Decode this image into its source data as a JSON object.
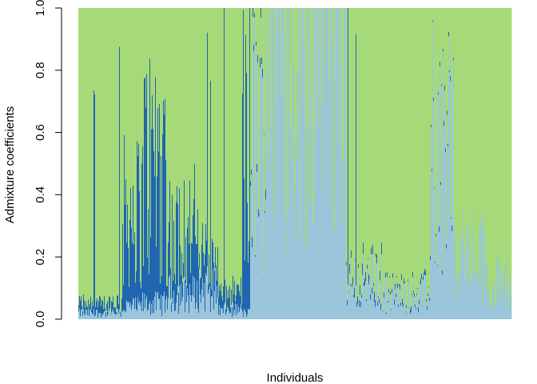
{
  "chart_data": {
    "type": "bar",
    "subtype": "stacked-admixture",
    "title": "",
    "xlabel": "Individuals",
    "ylabel": "Admixture coefficients",
    "ylim": [
      0,
      1
    ],
    "yticks": [
      "0.0",
      "0.2",
      "0.4",
      "0.6",
      "0.8",
      "1.0"
    ],
    "colors": {
      "light_blue": "#9ac5db",
      "dark_blue": "#1f65b0",
      "green": "#a6da78"
    },
    "series": [
      {
        "color": "light_blue"
      },
      {
        "color": "dark_blue"
      },
      {
        "color": "green"
      }
    ],
    "n_individuals": 542,
    "segments": [
      {
        "from": 0,
        "to": 55,
        "light_blue": 0.02,
        "dark_blue": 0.03,
        "green": 0.95
      },
      {
        "from": 55,
        "to": 80,
        "light_blue": 0.04,
        "dark_blue": 0.3,
        "green": 0.66
      },
      {
        "from": 80,
        "to": 110,
        "light_blue": 0.05,
        "dark_blue": 0.45,
        "green": 0.5
      },
      {
        "from": 110,
        "to": 150,
        "light_blue": 0.08,
        "dark_blue": 0.2,
        "green": 0.72
      },
      {
        "from": 150,
        "to": 175,
        "light_blue": 0.1,
        "dark_blue": 0.1,
        "green": 0.8
      },
      {
        "from": 175,
        "to": 205,
        "light_blue": 0.03,
        "dark_blue": 0.05,
        "green": 0.92
      },
      {
        "from": 205,
        "to": 215,
        "light_blue": 0.02,
        "dark_blue": 0.75,
        "green": 0.23
      },
      {
        "from": 215,
        "to": 235,
        "light_blue": 0.6,
        "dark_blue": 0.02,
        "green": 0.38
      },
      {
        "from": 235,
        "to": 335,
        "light_blue": 0.97,
        "dark_blue": 0.0,
        "green": 0.03
      },
      {
        "from": 335,
        "to": 380,
        "light_blue": 0.12,
        "dark_blue": 0.02,
        "green": 0.86
      },
      {
        "from": 380,
        "to": 440,
        "light_blue": 0.08,
        "dark_blue": 0.01,
        "green": 0.91
      },
      {
        "from": 440,
        "to": 470,
        "light_blue": 0.55,
        "dark_blue": 0.01,
        "green": 0.44
      },
      {
        "from": 470,
        "to": 510,
        "light_blue": 0.2,
        "dark_blue": 0.0,
        "green": 0.8
      },
      {
        "from": 510,
        "to": 542,
        "light_blue": 0.12,
        "dark_blue": 0.0,
        "green": 0.88
      }
    ],
    "grid": false,
    "legend": "none"
  }
}
